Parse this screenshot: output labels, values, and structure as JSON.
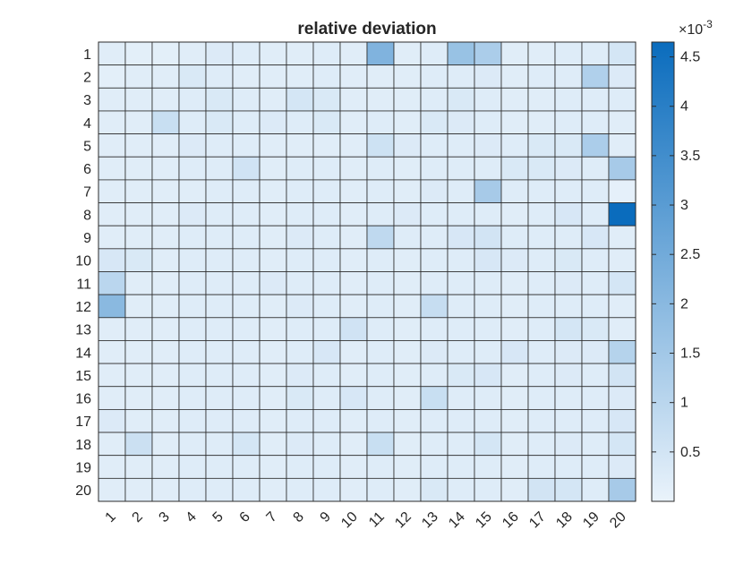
{
  "chart_data": {
    "type": "heatmap",
    "title": "relative deviation",
    "x_labels": [
      "1",
      "2",
      "3",
      "4",
      "5",
      "6",
      "7",
      "8",
      "9",
      "10",
      "11",
      "12",
      "13",
      "14",
      "15",
      "16",
      "17",
      "18",
      "19",
      "20"
    ],
    "y_labels": [
      "1",
      "2",
      "3",
      "4",
      "5",
      "6",
      "7",
      "8",
      "9",
      "10",
      "11",
      "12",
      "13",
      "14",
      "15",
      "16",
      "17",
      "18",
      "19",
      "20"
    ],
    "values_unit_exponent_label": "×10",
    "values_unit_exponent": "-3",
    "color_min": 0.0,
    "color_max": 4.65,
    "color_low": "#eaf3fb",
    "color_high": "#0a6cbd",
    "colorbar_ticks": [
      "0.5",
      "1",
      "1.5",
      "2",
      "2.5",
      "3",
      "3.5",
      "4",
      "4.5"
    ],
    "colorbar_tick_values": [
      0.5,
      1,
      1.5,
      2,
      2.5,
      3,
      3.5,
      4,
      4.5
    ],
    "values": [
      [
        0.2,
        0.15,
        0.15,
        0.2,
        0.3,
        0.25,
        0.2,
        0.2,
        0.25,
        0.2,
        2.2,
        0.2,
        0.25,
        1.7,
        1.3,
        0.2,
        0.2,
        0.25,
        0.25,
        0.45
      ],
      [
        0.15,
        0.2,
        0.2,
        0.35,
        0.25,
        0.2,
        0.2,
        0.2,
        0.25,
        0.2,
        0.2,
        0.2,
        0.25,
        0.25,
        0.3,
        0.2,
        0.25,
        0.25,
        1.2,
        0.3
      ],
      [
        0.2,
        0.2,
        0.2,
        0.25,
        0.35,
        0.25,
        0.2,
        0.45,
        0.35,
        0.2,
        0.2,
        0.2,
        0.25,
        0.35,
        0.25,
        0.2,
        0.2,
        0.25,
        0.25,
        0.25
      ],
      [
        0.2,
        0.2,
        0.7,
        0.25,
        0.35,
        0.25,
        0.3,
        0.25,
        0.35,
        0.2,
        0.25,
        0.2,
        0.35,
        0.3,
        0.25,
        0.2,
        0.2,
        0.25,
        0.25,
        0.2
      ],
      [
        0.2,
        0.2,
        0.2,
        0.3,
        0.25,
        0.25,
        0.2,
        0.2,
        0.2,
        0.2,
        0.6,
        0.3,
        0.25,
        0.25,
        0.3,
        0.25,
        0.35,
        0.35,
        1.3,
        0.2
      ],
      [
        0.2,
        0.2,
        0.2,
        0.25,
        0.25,
        0.55,
        0.2,
        0.25,
        0.25,
        0.2,
        0.25,
        0.2,
        0.25,
        0.25,
        0.25,
        0.35,
        0.35,
        0.3,
        0.25,
        1.4
      ],
      [
        0.2,
        0.2,
        0.2,
        0.2,
        0.25,
        0.25,
        0.2,
        0.25,
        0.25,
        0.2,
        0.25,
        0.2,
        0.3,
        0.25,
        1.4,
        0.25,
        0.25,
        0.25,
        0.25,
        0.1
      ],
      [
        0.2,
        0.2,
        0.2,
        0.3,
        0.25,
        0.25,
        0.2,
        0.25,
        0.25,
        0.2,
        0.25,
        0.3,
        0.25,
        0.25,
        0.25,
        0.2,
        0.25,
        0.4,
        0.25,
        4.65
      ],
      [
        0.2,
        0.2,
        0.2,
        0.25,
        0.25,
        0.25,
        0.2,
        0.3,
        0.25,
        0.2,
        0.9,
        0.25,
        0.25,
        0.4,
        0.5,
        0.25,
        0.25,
        0.25,
        0.4,
        0.2
      ],
      [
        0.4,
        0.35,
        0.2,
        0.25,
        0.25,
        0.25,
        0.2,
        0.25,
        0.25,
        0.2,
        0.25,
        0.2,
        0.25,
        0.25,
        0.4,
        0.3,
        0.25,
        0.35,
        0.25,
        0.2
      ],
      [
        1.0,
        0.2,
        0.2,
        0.25,
        0.25,
        0.25,
        0.3,
        0.25,
        0.25,
        0.2,
        0.25,
        0.2,
        0.25,
        0.25,
        0.25,
        0.2,
        0.25,
        0.3,
        0.25,
        0.45
      ],
      [
        2.0,
        0.2,
        0.2,
        0.25,
        0.25,
        0.25,
        0.2,
        0.3,
        0.25,
        0.2,
        0.25,
        0.2,
        0.75,
        0.25,
        0.25,
        0.2,
        0.25,
        0.25,
        0.25,
        0.2
      ],
      [
        0.2,
        0.2,
        0.2,
        0.25,
        0.25,
        0.25,
        0.2,
        0.25,
        0.25,
        0.55,
        0.25,
        0.2,
        0.25,
        0.25,
        0.25,
        0.2,
        0.25,
        0.45,
        0.35,
        0.2
      ],
      [
        0.2,
        0.2,
        0.2,
        0.25,
        0.25,
        0.25,
        0.2,
        0.25,
        0.4,
        0.2,
        0.25,
        0.2,
        0.3,
        0.25,
        0.25,
        0.4,
        0.25,
        0.3,
        0.3,
        1.1
      ],
      [
        0.2,
        0.2,
        0.2,
        0.25,
        0.25,
        0.25,
        0.2,
        0.3,
        0.25,
        0.2,
        0.25,
        0.2,
        0.25,
        0.35,
        0.4,
        0.2,
        0.25,
        0.3,
        0.25,
        0.5
      ],
      [
        0.2,
        0.2,
        0.2,
        0.25,
        0.25,
        0.25,
        0.2,
        0.35,
        0.25,
        0.4,
        0.25,
        0.2,
        0.7,
        0.25,
        0.25,
        0.2,
        0.25,
        0.25,
        0.25,
        0.3
      ],
      [
        0.3,
        0.2,
        0.2,
        0.25,
        0.25,
        0.25,
        0.2,
        0.25,
        0.25,
        0.2,
        0.25,
        0.2,
        0.25,
        0.25,
        0.25,
        0.2,
        0.25,
        0.25,
        0.25,
        0.4
      ],
      [
        0.2,
        0.65,
        0.2,
        0.25,
        0.25,
        0.45,
        0.2,
        0.3,
        0.25,
        0.2,
        0.7,
        0.2,
        0.25,
        0.25,
        0.45,
        0.2,
        0.25,
        0.3,
        0.25,
        0.45
      ],
      [
        0.2,
        0.2,
        0.2,
        0.25,
        0.25,
        0.25,
        0.2,
        0.25,
        0.25,
        0.2,
        0.25,
        0.2,
        0.25,
        0.25,
        0.25,
        0.2,
        0.25,
        0.25,
        0.25,
        0.3
      ],
      [
        0.2,
        0.2,
        0.2,
        0.25,
        0.25,
        0.25,
        0.2,
        0.25,
        0.25,
        0.2,
        0.25,
        0.2,
        0.35,
        0.25,
        0.25,
        0.2,
        0.5,
        0.45,
        0.25,
        1.4
      ]
    ]
  }
}
